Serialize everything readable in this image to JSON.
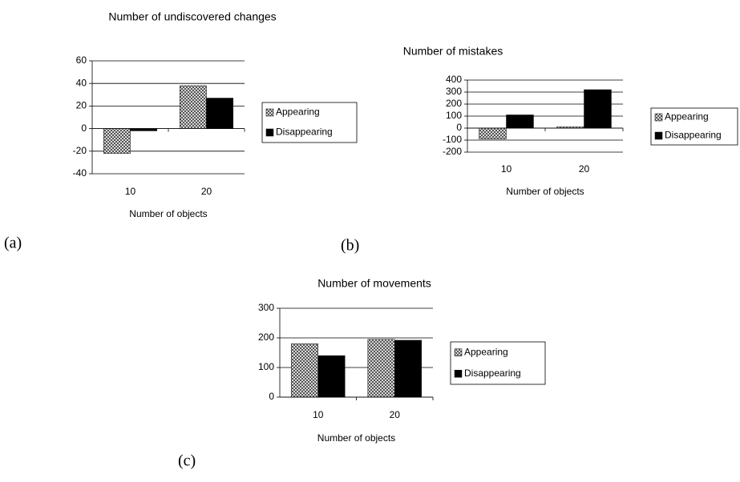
{
  "chart_data": [
    {
      "type": "bar",
      "title": "Number of undiscovered changes",
      "x_label": "Number of objects",
      "categories": [
        "10",
        "20"
      ],
      "series": [
        {
          "name": "Appearing",
          "color": "#a0a0a0",
          "pattern": "checker",
          "values": [
            -22,
            38
          ]
        },
        {
          "name": "Disappearing",
          "color": "#000000",
          "values": [
            -2,
            27
          ]
        }
      ],
      "ylim": [
        -40,
        60
      ],
      "yticks": [
        -40,
        -20,
        0,
        20,
        40,
        60
      ],
      "grid": true,
      "legend": "right"
    },
    {
      "type": "bar",
      "title": "Number of mistakes",
      "x_label": "Number of objects",
      "categories": [
        "10",
        "20"
      ],
      "series": [
        {
          "name": "Appearing",
          "color": "#a0a0a0",
          "pattern": "checker",
          "values": [
            -90,
            10
          ]
        },
        {
          "name": "Disappearing",
          "color": "#000000",
          "values": [
            110,
            320
          ]
        }
      ],
      "ylim": [
        -200,
        400
      ],
      "yticks": [
        -200,
        -100,
        0,
        100,
        200,
        300,
        400
      ],
      "grid": true,
      "legend": "right"
    },
    {
      "type": "bar",
      "title": "Number of movements",
      "x_label": "Number of objects",
      "categories": [
        "10",
        "20"
      ],
      "series": [
        {
          "name": "Appearing",
          "color": "#a0a0a0",
          "pattern": "checker",
          "values": [
            180,
            195
          ]
        },
        {
          "name": "Disappearing",
          "color": "#000000",
          "values": [
            140,
            192
          ]
        }
      ],
      "ylim": [
        0,
        300
      ],
      "yticks": [
        0,
        100,
        200,
        300
      ],
      "grid": true,
      "legend": "right"
    }
  ],
  "panel_labels": [
    "(a)",
    "(b)",
    "(c)"
  ]
}
